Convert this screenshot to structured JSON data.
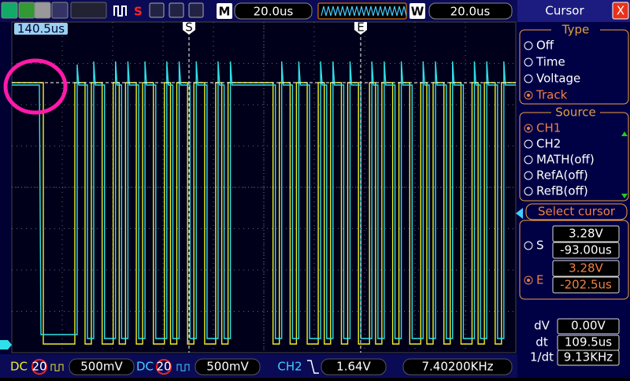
{
  "top": {
    "mode": "M",
    "timebase": "20.0us",
    "window": "W",
    "window_timebase": "20.0us",
    "run_icon": "S"
  },
  "screen": {
    "time_offset": "140.5us",
    "cursor_s": "S",
    "cursor_e": "E"
  },
  "panel": {
    "title": "Cursor",
    "close": "X",
    "type": {
      "header": "Type",
      "options": [
        "Off",
        "Time",
        "Voltage",
        "Track"
      ]
    },
    "source": {
      "header": "Source",
      "options": [
        "CH1",
        "CH2",
        "MATH(off)",
        "RefA(off)",
        "RefB(off)"
      ]
    },
    "select": "Select cursor",
    "s": {
      "label": "S",
      "voltage": "3.28V",
      "time": "-93.00us"
    },
    "e": {
      "label": "E",
      "voltage": "3.28V",
      "time": "-202.5us"
    },
    "delta": {
      "dv_label": "dV",
      "dv": "0.00V",
      "dt_label": "dt",
      "dt": "109.5us",
      "inv_label": "1/dt",
      "inv": "9.13KHz"
    }
  },
  "bottom": {
    "ch1_coupling": "DC",
    "ch1_bw": "20",
    "ch1_scale": "500mV",
    "ch2_coupling": "DC",
    "ch2_bw": "20",
    "ch2_scale": "500mV",
    "trigger_source": "CH2",
    "trigger_level": "1.64V",
    "frequency": "7.40200KHz"
  }
}
